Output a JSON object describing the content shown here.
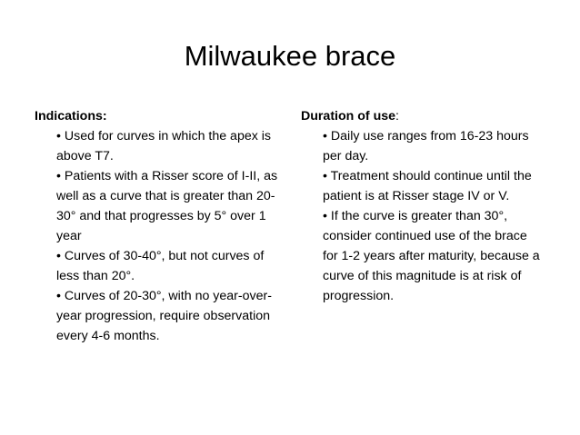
{
  "title": "Milwaukee brace",
  "left": {
    "heading": "Indications:",
    "bullets": [
      "• Used for curves in which the apex is above T7.",
      "• Patients with a Risser score of I-II, as well as a curve that is greater than 20-30° and that progresses by 5° over 1 year",
      "• Curves of 30-40°, but not curves of less than 20°.",
      "• Curves of 20-30°, with no year-over-year progression, require observation every 4-6 months."
    ]
  },
  "right": {
    "heading": "Duration of use",
    "heading_suffix": ":",
    "bullets": [
      "• Daily use ranges from 16-23 hours per day.",
      "• Treatment should continue until the patient is at Risser stage IV or V.",
      "• If the curve is greater than 30°, consider continued use of the brace for 1-2 years after maturity, because a curve of this magnitude is at risk of progression."
    ]
  }
}
